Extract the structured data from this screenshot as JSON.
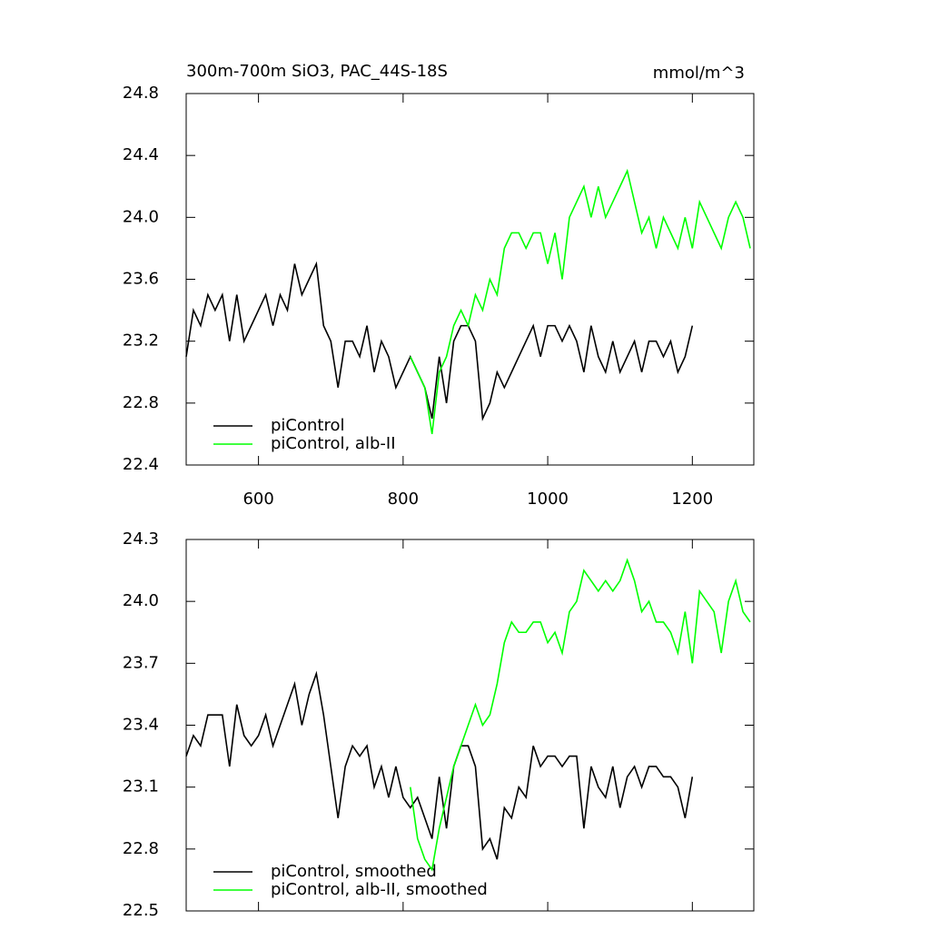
{
  "chart_data": [
    {
      "type": "line",
      "title": "300m-700m SiO3, PAC_44S-18S",
      "title_right": "mmol/m^3",
      "xlim": [
        500,
        1285
      ],
      "xticks": [
        600,
        800,
        1000,
        1200
      ],
      "show_xtick_labels": true,
      "ylim": [
        22.4,
        24.8
      ],
      "yticks": [
        22.4,
        22.8,
        23.2,
        23.6,
        {
          "value": 24,
          "label": "24.0"
        },
        24.4,
        24.8
      ],
      "legend": "lower left",
      "series": [
        {
          "name": "piControl",
          "color": "#000000",
          "x": [
            500,
            510,
            520,
            530,
            540,
            550,
            560,
            570,
            580,
            590,
            600,
            610,
            620,
            630,
            640,
            650,
            660,
            670,
            680,
            690,
            700,
            710,
            720,
            730,
            740,
            750,
            760,
            770,
            780,
            790,
            800,
            810,
            820,
            830,
            840,
            850,
            860,
            870,
            880,
            890,
            900,
            910,
            920,
            930,
            940,
            950,
            960,
            970,
            980,
            990,
            1000,
            1010,
            1020,
            1030,
            1040,
            1050,
            1060,
            1070,
            1080,
            1090,
            1100,
            1110,
            1120,
            1130,
            1140,
            1150,
            1160,
            1170,
            1180,
            1190,
            1200
          ],
          "values": [
            23.1,
            23.4,
            23.3,
            23.5,
            23.4,
            23.5,
            23.2,
            23.5,
            23.2,
            23.3,
            23.4,
            23.5,
            23.3,
            23.5,
            23.4,
            23.7,
            23.5,
            23.6,
            23.7,
            23.3,
            23.2,
            22.9,
            23.2,
            23.2,
            23.1,
            23.3,
            23.0,
            23.2,
            23.1,
            22.9,
            23.0,
            23.1,
            23.0,
            22.9,
            22.7,
            23.1,
            22.8,
            23.2,
            23.3,
            23.3,
            23.2,
            22.7,
            22.8,
            23.0,
            22.9,
            23.0,
            23.1,
            23.2,
            23.3,
            23.1,
            23.3,
            23.3,
            23.2,
            23.3,
            23.2,
            23.0,
            23.3,
            23.1,
            23.0,
            23.2,
            23.0,
            23.1,
            23.2,
            23.0,
            23.2,
            23.2,
            23.1,
            23.2,
            23.0,
            23.1,
            23.3
          ]
        },
        {
          "name": "piControl, alb-II",
          "color": "#00ff00",
          "x": [
            810,
            820,
            830,
            840,
            850,
            860,
            870,
            880,
            890,
            900,
            910,
            920,
            930,
            940,
            950,
            960,
            970,
            980,
            990,
            1000,
            1010,
            1020,
            1030,
            1040,
            1050,
            1060,
            1070,
            1080,
            1090,
            1100,
            1110,
            1120,
            1130,
            1140,
            1150,
            1160,
            1170,
            1180,
            1190,
            1200,
            1210,
            1220,
            1230,
            1240,
            1250,
            1260,
            1270,
            1280
          ],
          "values": [
            23.1,
            23.0,
            22.9,
            22.6,
            23.0,
            23.1,
            23.3,
            23.4,
            23.3,
            23.5,
            23.4,
            23.6,
            23.5,
            23.8,
            23.9,
            23.9,
            23.8,
            23.9,
            23.9,
            23.7,
            23.9,
            23.6,
            24.0,
            24.1,
            24.2,
            24.0,
            24.2,
            24.0,
            24.1,
            24.2,
            24.3,
            24.1,
            23.9,
            24.0,
            23.8,
            24.0,
            23.9,
            23.8,
            24.0,
            23.8,
            24.1,
            24.0,
            23.9,
            23.8,
            24.0,
            24.1,
            24.0,
            23.8
          ]
        }
      ]
    },
    {
      "type": "line",
      "xlim": [
        500,
        1285
      ],
      "xticks": [
        600,
        800,
        1000,
        1200
      ],
      "show_xtick_labels": false,
      "ylim": [
        22.5,
        24.3
      ],
      "yticks": [
        22.5,
        22.8,
        23.1,
        23.4,
        23.7,
        {
          "value": 24,
          "label": "24.0"
        },
        24.3
      ],
      "legend": "lower left",
      "series": [
        {
          "name": "piControl, smoothed",
          "color": "#000000",
          "x": [
            500,
            510,
            520,
            530,
            540,
            550,
            560,
            570,
            580,
            590,
            600,
            610,
            620,
            630,
            640,
            650,
            660,
            670,
            680,
            690,
            700,
            710,
            720,
            730,
            740,
            750,
            760,
            770,
            780,
            790,
            800,
            810,
            820,
            830,
            840,
            850,
            860,
            870,
            880,
            890,
            900,
            910,
            920,
            930,
            940,
            950,
            960,
            970,
            980,
            990,
            1000,
            1010,
            1020,
            1030,
            1040,
            1050,
            1060,
            1070,
            1080,
            1090,
            1100,
            1110,
            1120,
            1130,
            1140,
            1150,
            1160,
            1170,
            1180,
            1190,
            1200
          ],
          "values": [
            23.25,
            23.35,
            23.3,
            23.45,
            23.45,
            23.45,
            23.2,
            23.5,
            23.35,
            23.3,
            23.35,
            23.45,
            23.3,
            23.4,
            23.5,
            23.6,
            23.4,
            23.55,
            23.65,
            23.45,
            23.2,
            22.95,
            23.2,
            23.3,
            23.25,
            23.3,
            23.1,
            23.2,
            23.05,
            23.2,
            23.05,
            23.0,
            23.05,
            22.95,
            22.85,
            23.15,
            22.9,
            23.2,
            23.3,
            23.3,
            23.2,
            22.8,
            22.85,
            22.75,
            23.0,
            22.95,
            23.1,
            23.05,
            23.3,
            23.2,
            23.25,
            23.25,
            23.2,
            23.25,
            23.25,
            22.9,
            23.2,
            23.1,
            23.05,
            23.2,
            23.0,
            23.15,
            23.2,
            23.1,
            23.2,
            23.2,
            23.15,
            23.15,
            23.1,
            22.95,
            23.15
          ]
        },
        {
          "name": "piControl, alb-II, smoothed",
          "color": "#00ff00",
          "x": [
            810,
            820,
            830,
            840,
            850,
            860,
            870,
            880,
            890,
            900,
            910,
            920,
            930,
            940,
            950,
            960,
            970,
            980,
            990,
            1000,
            1010,
            1020,
            1030,
            1040,
            1050,
            1060,
            1070,
            1080,
            1090,
            1100,
            1110,
            1120,
            1130,
            1140,
            1150,
            1160,
            1170,
            1180,
            1190,
            1200,
            1210,
            1220,
            1230,
            1240,
            1250,
            1260,
            1270,
            1280
          ],
          "values": [
            23.1,
            22.85,
            22.75,
            22.7,
            22.9,
            23.05,
            23.2,
            23.3,
            23.4,
            23.5,
            23.4,
            23.45,
            23.6,
            23.8,
            23.9,
            23.85,
            23.85,
            23.9,
            23.9,
            23.8,
            23.85,
            23.75,
            23.95,
            24.0,
            24.15,
            24.1,
            24.05,
            24.1,
            24.05,
            24.1,
            24.2,
            24.1,
            23.95,
            24.0,
            23.9,
            23.9,
            23.85,
            23.75,
            23.95,
            23.7,
            24.05,
            24.0,
            23.95,
            23.75,
            24.0,
            24.1,
            23.95,
            23.9
          ]
        }
      ]
    }
  ]
}
